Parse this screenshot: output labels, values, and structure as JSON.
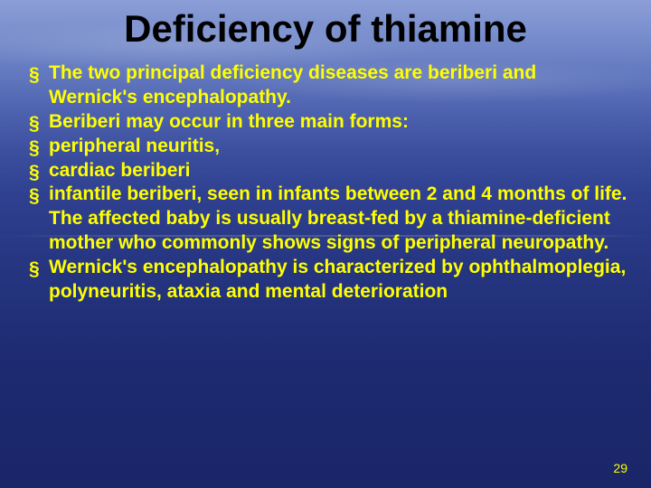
{
  "title": {
    "text": "Deficiency of thiamine",
    "color": "#000000",
    "fontsize": 42
  },
  "bullets": {
    "items": [
      "The two principal deficiency diseases are beriberi and Wernick's encephalopathy.",
      "Beriberi may occur in three main forms:",
      " peripheral neuritis,",
      " cardiac beriberi",
      "infantile beriberi, seen in infants between 2 and 4 months of life. The affected baby is usually breast-fed by a thiamine-deficient mother who commonly shows signs of peripheral neuropathy.",
      "Wernick's encephalopathy is characterized by ophthalmoplegia, polyneuritis, ataxia and mental deterioration"
    ],
    "text_color": "#ffff00",
    "fontsize": 21,
    "bullet_glyph": "§",
    "bullet_color": "#ffff00"
  },
  "page_number": {
    "text": "29",
    "color": "#ffff00",
    "fontsize": 14
  }
}
